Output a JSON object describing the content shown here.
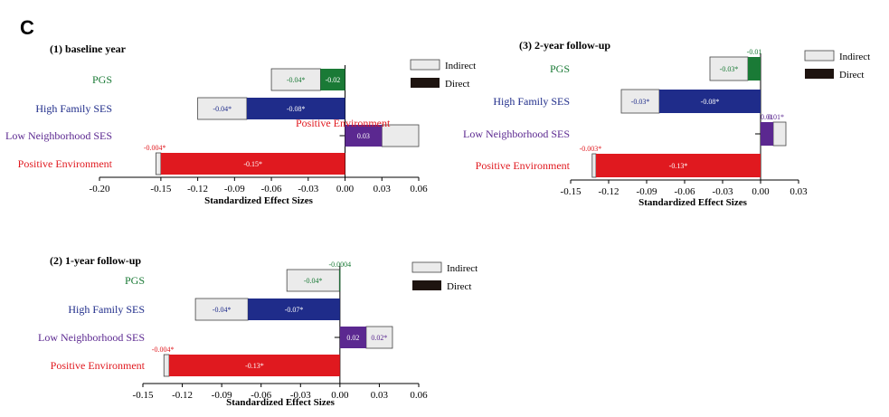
{
  "panel_letter": "C",
  "xlabel": "Standardized Effect Sizes",
  "legend": {
    "indirect": "Indirect",
    "direct": "Direct"
  },
  "colors": {
    "PGS": "#1a7a36",
    "High Family SES": "#1f2c8a",
    "Low Neighborhood SES": "#5b2890",
    "Positive Environment": "#e0191f",
    "indirect_fill": "#ebebeb",
    "direct_fill": "#1e1410"
  },
  "chart_data": [
    {
      "type": "bar",
      "orientation": "horizontal",
      "stacked": true,
      "title": "(1) baseline year",
      "xlabel": "Standardized Effect Sizes",
      "xlim": [
        -0.2,
        0.06
      ],
      "xticks": [
        "-0.20",
        "-0.15",
        "-0.12",
        "-0.09",
        "-0.06",
        "-0.03",
        "0.00",
        "0.03",
        "0.06"
      ],
      "categories": [
        "PGS",
        "High Family SES",
        "Low Neighborhood SES",
        "Positive Environment"
      ],
      "series": [
        {
          "name": "Indirect",
          "values": [
            -0.04,
            -0.04,
            0.03,
            -0.004
          ],
          "labels": [
            "-0.04*",
            "-0.04*",
            "",
            "-0.004*"
          ]
        },
        {
          "name": "Direct",
          "values": [
            -0.02,
            -0.08,
            0.03,
            -0.15
          ],
          "labels": [
            "-0.02",
            "-0.08*",
            "0.03",
            "-0.15*"
          ]
        }
      ],
      "annotations": [
        "Positive Environment"
      ]
    },
    {
      "type": "bar",
      "orientation": "horizontal",
      "stacked": true,
      "title": "(2) 1-year follow-up",
      "xlabel": "Standardized Effect Sizes",
      "xlim": [
        -0.15,
        0.06
      ],
      "xticks": [
        "-0.15",
        "-0.12",
        "-0.09",
        "-0.06",
        "-0.03",
        "0.00",
        "0.03",
        "0.06"
      ],
      "categories": [
        "PGS",
        "High Family SES",
        "Low Neighborhood SES",
        "Positive Environment"
      ],
      "series": [
        {
          "name": "Indirect",
          "values": [
            -0.04,
            -0.04,
            0.02,
            -0.004
          ],
          "labels": [
            "-0.04*",
            "-0.04*",
            "0.02*",
            "-0.004*"
          ]
        },
        {
          "name": "Direct",
          "values": [
            -0.0004,
            -0.07,
            0.02,
            -0.13
          ],
          "labels": [
            "-0.0004",
            "-0.07*",
            "0.02",
            "-0.13*"
          ]
        }
      ]
    },
    {
      "type": "bar",
      "orientation": "horizontal",
      "stacked": true,
      "title": "(3) 2-year follow-up",
      "xlabel": "Standardized Effect Sizes",
      "xlim": [
        -0.15,
        0.03
      ],
      "xticks": [
        "-0.15",
        "-0.12",
        "-0.09",
        "-0.06",
        "-0.03",
        "0.00",
        "0.03"
      ],
      "categories": [
        "PGS",
        "High Family SES",
        "Low Neighborhood SES",
        "Positive Environment"
      ],
      "series": [
        {
          "name": "Indirect",
          "values": [
            -0.03,
            -0.03,
            0.01,
            -0.003
          ],
          "labels": [
            "-0.03*",
            "-0.03*",
            "0.01*",
            "-0.003*"
          ]
        },
        {
          "name": "Direct",
          "values": [
            -0.01,
            -0.08,
            0.01,
            -0.13
          ],
          "labels": [
            "-0.01",
            "-0.08*",
            "0.01",
            "-0.13*"
          ]
        }
      ]
    }
  ]
}
